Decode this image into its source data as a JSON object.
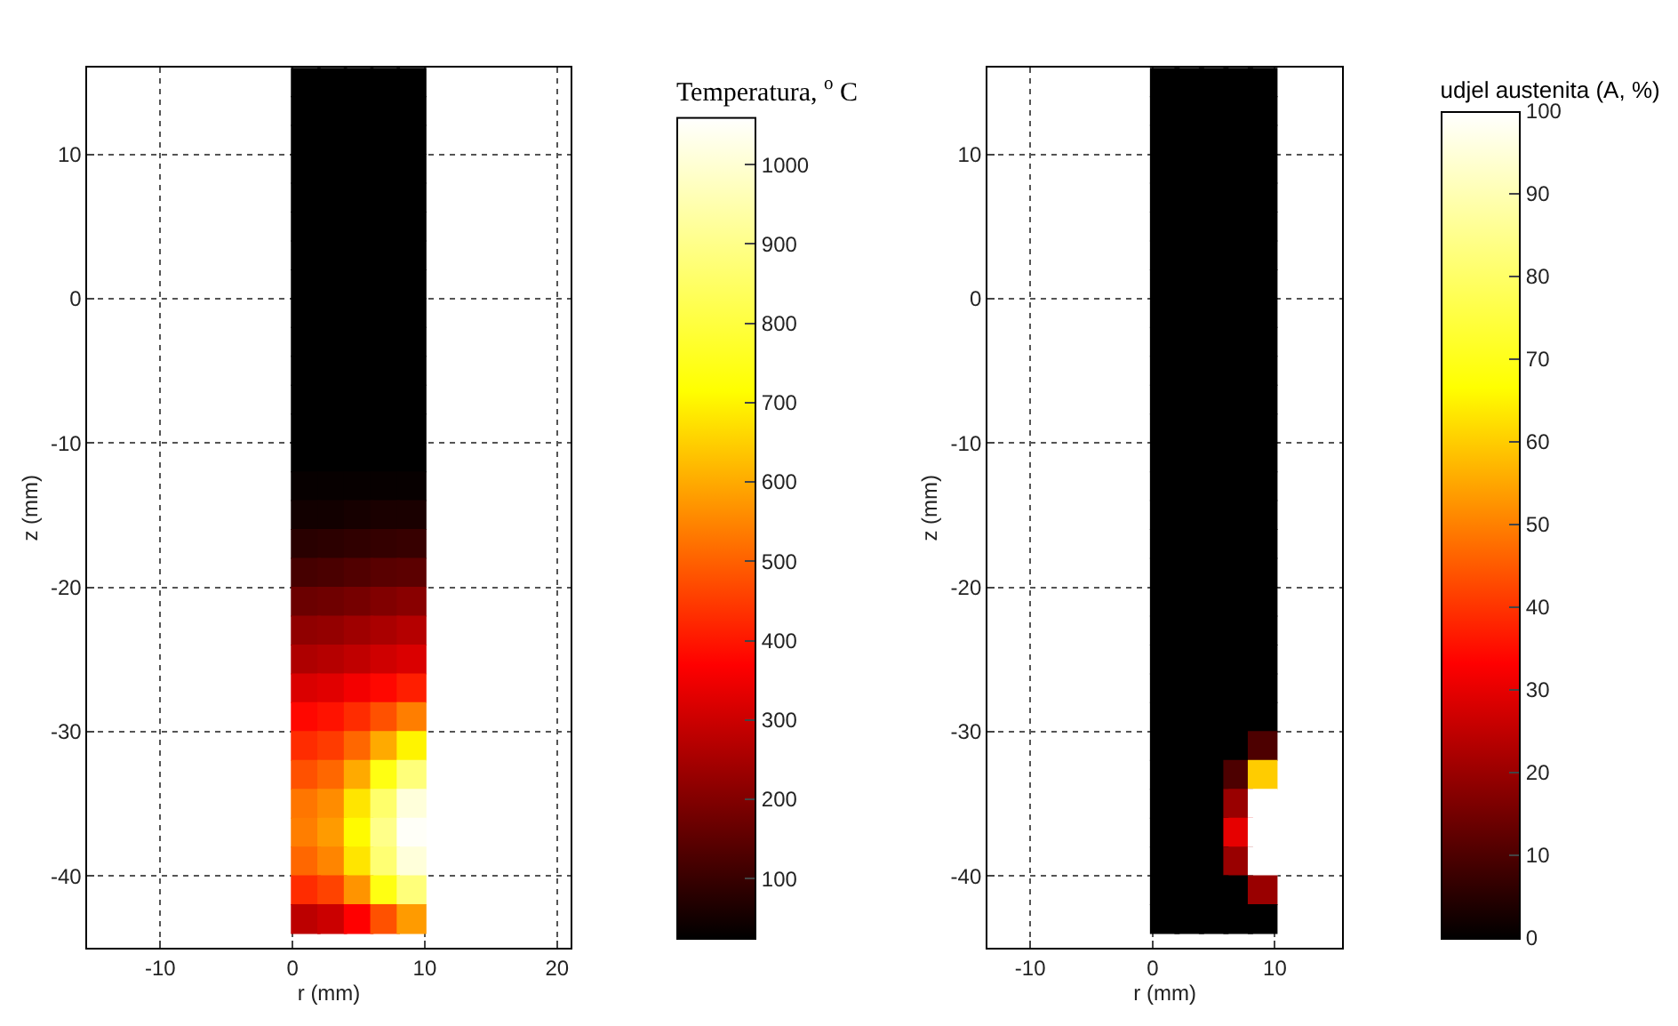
{
  "chart_data": [
    {
      "type": "scatter",
      "marker": "square",
      "xlabel": "r (mm)",
      "ylabel": "z (mm)",
      "clabel": "Temperatura, $^{o}$ C",
      "x": [
        1,
        3,
        5,
        7,
        9,
        1,
        3,
        5,
        7,
        9,
        1,
        3,
        5,
        7,
        9,
        1,
        3,
        5,
        7,
        9,
        1,
        3,
        5,
        7,
        9,
        1,
        3,
        5,
        7,
        9,
        1,
        3,
        5,
        7,
        9,
        1,
        3,
        5,
        7,
        9,
        1,
        3,
        5,
        7,
        9,
        1,
        3,
        5,
        7,
        9,
        1,
        3,
        5,
        7,
        9,
        1,
        3,
        5,
        7,
        9,
        1,
        3,
        5,
        7,
        9,
        1,
        3,
        5,
        7,
        9,
        1,
        3,
        5,
        7,
        9,
        1,
        3,
        5,
        7,
        9,
        1,
        3,
        5,
        7,
        9,
        1,
        3,
        5,
        7,
        9,
        1,
        3,
        5,
        7,
        9,
        1,
        3,
        5,
        7,
        9,
        1,
        3,
        5,
        7,
        9,
        1,
        3,
        5,
        7,
        9,
        1,
        3,
        5,
        7,
        9,
        1,
        3,
        5,
        7,
        9,
        1,
        3,
        5,
        7,
        9,
        1,
        3,
        5,
        7,
        9,
        1,
        3,
        5,
        7,
        9,
        1,
        3,
        5,
        7,
        9,
        1,
        3,
        5,
        7,
        9,
        1,
        3,
        5,
        7,
        9
      ],
      "values": [
        15,
        15,
        15,
        15,
        15,
        13,
        13,
        13,
        13,
        13,
        11,
        11,
        11,
        11,
        11,
        9,
        9,
        9,
        9,
        9,
        7,
        7,
        7,
        7,
        7,
        5,
        5,
        5,
        5,
        5,
        3,
        3,
        3,
        3,
        3,
        1,
        1,
        1,
        1,
        1,
        -1,
        -1,
        -1,
        -1,
        -1,
        -3,
        -3,
        -3,
        -3,
        -3,
        -5,
        -5,
        -5,
        -5,
        -5,
        -7,
        -7,
        -7,
        -7,
        -7,
        -9,
        -9,
        -9,
        -9,
        -9,
        -11,
        -11,
        -11,
        -11,
        -11,
        -13,
        -13,
        -13,
        -13,
        -13,
        -15,
        -15,
        -15,
        -15,
        -15,
        -17,
        -17,
        -17,
        -17,
        -17,
        -19,
        -19,
        -19,
        -19,
        -19,
        -21,
        -21,
        -21,
        -21,
        -21,
        -23,
        -23,
        -23,
        -23,
        -23,
        -25,
        -25,
        -25,
        -25,
        -25,
        -27,
        -27,
        -27,
        -27,
        -27,
        -29,
        -29,
        -29,
        -29,
        -29,
        -31,
        -31,
        -31,
        -31,
        -31,
        -33,
        -33,
        -33,
        -33,
        -33,
        -35,
        -35,
        -35,
        -35,
        -35,
        -37,
        -37,
        -37,
        -37,
        -37,
        -39,
        -39,
        -39,
        -39,
        -39,
        -41,
        -41,
        -41,
        -41,
        -41,
        -43,
        -43,
        -43,
        -43,
        -43
      ],
      "cvalues": [
        25,
        25,
        25,
        25,
        25,
        25,
        25,
        25,
        25,
        25,
        25,
        25,
        25,
        25,
        25,
        25,
        25,
        25,
        25,
        25,
        25,
        25,
        25,
        25,
        25,
        25,
        25,
        25,
        25,
        25,
        25,
        25,
        25,
        25,
        25,
        25,
        25,
        25,
        25,
        25,
        25,
        25,
        25,
        25,
        25,
        25,
        25,
        25,
        25,
        25,
        25,
        25,
        25,
        25,
        25,
        25,
        25,
        25,
        25,
        25,
        25,
        25,
        25,
        25,
        25,
        25,
        25,
        25,
        25,
        25,
        35,
        35,
        35,
        35,
        35,
        50,
        50,
        55,
        60,
        60,
        80,
        85,
        90,
        95,
        100,
        120,
        125,
        135,
        145,
        150,
        170,
        175,
        185,
        200,
        210,
        220,
        225,
        240,
        255,
        270,
        260,
        270,
        285,
        305,
        320,
        320,
        330,
        355,
        380,
        410,
        380,
        395,
        430,
        480,
        540,
        430,
        450,
        510,
        600,
        700,
        480,
        510,
        600,
        740,
        880,
        530,
        560,
        680,
        860,
        1010,
        540,
        580,
        710,
        900,
        1050,
        510,
        550,
        680,
        870,
        1010,
        430,
        460,
        570,
        740,
        880,
        280,
        300,
        370,
        480,
        580
      ],
      "xlim": [
        -15.5,
        21
      ],
      "xticks": [
        -10,
        0,
        10,
        20
      ],
      "ylim": [
        -45,
        16
      ],
      "yticks": [
        -40,
        -30,
        -20,
        -10,
        0,
        10
      ],
      "clim": [
        25,
        1060
      ],
      "cticks": [
        100,
        200,
        300,
        400,
        500,
        600,
        700,
        800,
        900,
        1000
      ],
      "grid": true
    },
    {
      "type": "scatter",
      "marker": "square",
      "xlabel": "r (mm)",
      "ylabel": "z (mm)",
      "clabel": "udjel austenita (A, %)",
      "x": [
        1,
        3,
        5,
        7,
        9,
        1,
        3,
        5,
        7,
        9,
        1,
        3,
        5,
        7,
        9,
        1,
        3,
        5,
        7,
        9,
        1,
        3,
        5,
        7,
        9,
        1,
        3,
        5,
        7,
        9,
        1,
        3,
        5,
        7,
        9,
        1,
        3,
        5,
        7,
        9,
        1,
        3,
        5,
        7,
        9,
        1,
        3,
        5,
        7,
        9,
        1,
        3,
        5,
        7,
        9,
        1,
        3,
        5,
        7,
        9,
        1,
        3,
        5,
        7,
        9,
        1,
        3,
        5,
        7,
        9,
        1,
        3,
        5,
        7,
        9,
        1,
        3,
        5,
        7,
        9,
        1,
        3,
        5,
        7,
        9,
        1,
        3,
        5,
        7,
        9,
        1,
        3,
        5,
        7,
        9,
        1,
        3,
        5,
        7,
        9,
        1,
        3,
        5,
        7,
        9,
        1,
        3,
        5,
        7,
        9,
        1,
        3,
        5,
        7,
        9,
        1,
        3,
        5,
        7,
        9,
        1,
        3,
        5,
        7,
        9,
        1,
        3,
        5,
        7,
        9,
        1,
        3,
        5,
        7,
        9,
        1,
        3,
        5,
        7,
        9,
        1,
        3,
        5,
        7,
        9,
        1,
        3,
        5,
        7,
        9
      ],
      "values": [
        15,
        15,
        15,
        15,
        15,
        13,
        13,
        13,
        13,
        13,
        11,
        11,
        11,
        11,
        11,
        9,
        9,
        9,
        9,
        9,
        7,
        7,
        7,
        7,
        7,
        5,
        5,
        5,
        5,
        5,
        3,
        3,
        3,
        3,
        3,
        1,
        1,
        1,
        1,
        1,
        -1,
        -1,
        -1,
        -1,
        -1,
        -3,
        -3,
        -3,
        -3,
        -3,
        -5,
        -5,
        -5,
        -5,
        -5,
        -7,
        -7,
        -7,
        -7,
        -7,
        -9,
        -9,
        -9,
        -9,
        -9,
        -11,
        -11,
        -11,
        -11,
        -11,
        -13,
        -13,
        -13,
        -13,
        -13,
        -15,
        -15,
        -15,
        -15,
        -15,
        -17,
        -17,
        -17,
        -17,
        -17,
        -19,
        -19,
        -19,
        -19,
        -19,
        -21,
        -21,
        -21,
        -21,
        -21,
        -23,
        -23,
        -23,
        -23,
        -23,
        -25,
        -25,
        -25,
        -25,
        -25,
        -27,
        -27,
        -27,
        -27,
        -27,
        -29,
        -29,
        -29,
        -29,
        -29,
        -31,
        -31,
        -31,
        -31,
        -31,
        -33,
        -33,
        -33,
        -33,
        -33,
        -35,
        -35,
        -35,
        -35,
        -35,
        -37,
        -37,
        -37,
        -37,
        -37,
        -39,
        -39,
        -39,
        -39,
        -39,
        -41,
        -41,
        -41,
        -41,
        -41,
        -43,
        -43,
        -43,
        -43,
        -43
      ],
      "cvalues": [
        0,
        0,
        0,
        0,
        0,
        0,
        0,
        0,
        0,
        0,
        0,
        0,
        0,
        0,
        0,
        0,
        0,
        0,
        0,
        0,
        0,
        0,
        0,
        0,
        0,
        0,
        0,
        0,
        0,
        0,
        0,
        0,
        0,
        0,
        0,
        0,
        0,
        0,
        0,
        0,
        0,
        0,
        0,
        0,
        0,
        0,
        0,
        0,
        0,
        0,
        0,
        0,
        0,
        0,
        0,
        0,
        0,
        0,
        0,
        0,
        0,
        0,
        0,
        0,
        0,
        0,
        0,
        0,
        0,
        0,
        0,
        0,
        0,
        0,
        0,
        0,
        0,
        0,
        0,
        0,
        0,
        0,
        0,
        0,
        0,
        0,
        0,
        0,
        0,
        0,
        0,
        0,
        0,
        0,
        0,
        0,
        0,
        0,
        0,
        0,
        0,
        0,
        0,
        0,
        0,
        0,
        0,
        0,
        0,
        0,
        0,
        0,
        0,
        0,
        0,
        0,
        0,
        0,
        0,
        10,
        0,
        0,
        0,
        10,
        60,
        0,
        0,
        0,
        20,
        100,
        0,
        0,
        0,
        30,
        100,
        0,
        0,
        0,
        20,
        100,
        0,
        0,
        0,
        0,
        20,
        0,
        0,
        0,
        0,
        0
      ],
      "xlim": [
        -13.5,
        15.5
      ],
      "xticks": [
        -10,
        0,
        10
      ],
      "ylim": [
        -45,
        16
      ],
      "yticks": [
        -40,
        -30,
        -20,
        -10,
        0,
        10
      ],
      "clim": [
        0,
        100
      ],
      "cticks": [
        0,
        10,
        20,
        30,
        40,
        50,
        60,
        70,
        80,
        90,
        100
      ],
      "grid": true
    }
  ]
}
